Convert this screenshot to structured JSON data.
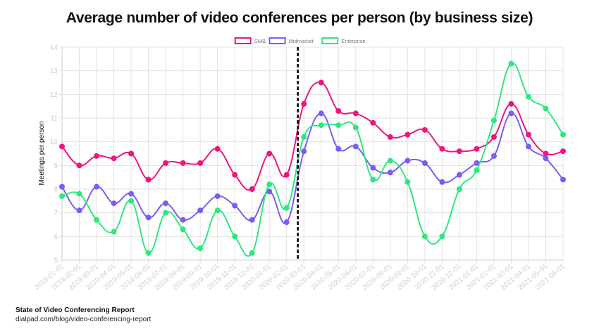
{
  "title": "Average number of video conferences per person (by business size)",
  "footer": {
    "source_title": "State of Video Conferencing Report",
    "source_url": "dialpad.com/blog/video-conferencing-report"
  },
  "colors": {
    "SMB": "#f0147f",
    "Midmarket": "#7b5cf5",
    "Enterprise": "#2ee87e",
    "grid": "#e3e3e3",
    "tick_label": "#cfcfcf",
    "marker_line": "#000000"
  },
  "chart_data": {
    "type": "line",
    "title": "Average number of video conferences per person (by business size)",
    "xlabel": "",
    "ylabel": "Meetings per person",
    "ylim": [
      5,
      14
    ],
    "yticks": [
      5,
      6,
      7,
      8,
      9,
      10,
      11,
      12,
      13,
      14
    ],
    "grid": true,
    "legend_position": "top",
    "smooth": true,
    "vertical_marker": {
      "x_index": 13.65,
      "style": "dashed",
      "color": "#000000"
    },
    "x": [
      "2019-01-01",
      "2019-02-01",
      "2019-03-01",
      "2019-04-01",
      "2019-05-01",
      "2019-06-01",
      "2019-07-01",
      "2019-08-01",
      "2019-09-01",
      "2019-10-01",
      "2019-11-01",
      "2019-12-01",
      "2020-01-01",
      "2020-02-01",
      "2020-03-01",
      "2020-04-01",
      "2020-05-01",
      "2020-06-01",
      "2020-07-01",
      "2020-08-01",
      "2020-09-01",
      "2020-10-01",
      "2020-11-01",
      "2020-12-01",
      "2021-01-01",
      "2021-02-01",
      "2021-03-01",
      "2021-04-01",
      "2021-05-01",
      "2021-06-01"
    ],
    "series": [
      {
        "name": "SMB",
        "color": "#f0147f",
        "values": [
          9.8,
          9.0,
          9.4,
          9.3,
          9.5,
          8.4,
          9.1,
          9.1,
          9.1,
          9.7,
          8.6,
          8.0,
          9.5,
          8.6,
          11.6,
          12.5,
          11.3,
          11.2,
          10.8,
          10.2,
          10.3,
          10.5,
          9.7,
          9.6,
          9.7,
          10.2,
          11.6,
          10.3,
          9.5,
          9.6
        ]
      },
      {
        "name": "Midmarket",
        "color": "#7b5cf5",
        "values": [
          8.1,
          7.1,
          8.1,
          7.4,
          7.8,
          6.8,
          7.4,
          6.7,
          7.1,
          7.7,
          7.3,
          6.7,
          7.9,
          6.6,
          9.6,
          11.2,
          9.7,
          9.8,
          8.9,
          8.7,
          9.2,
          9.1,
          8.3,
          8.6,
          9.1,
          9.4,
          11.2,
          9.8,
          9.3,
          8.4
        ]
      },
      {
        "name": "Enterprise",
        "color": "#2ee87e",
        "values": [
          7.7,
          7.8,
          6.7,
          6.2,
          7.5,
          5.3,
          7.0,
          6.3,
          5.5,
          7.1,
          6.0,
          5.3,
          8.2,
          7.2,
          10.2,
          10.7,
          10.7,
          10.6,
          8.4,
          9.2,
          8.3,
          6.0,
          6.0,
          8.0,
          8.8,
          10.9,
          13.3,
          11.9,
          11.4,
          10.3
        ]
      }
    ]
  }
}
